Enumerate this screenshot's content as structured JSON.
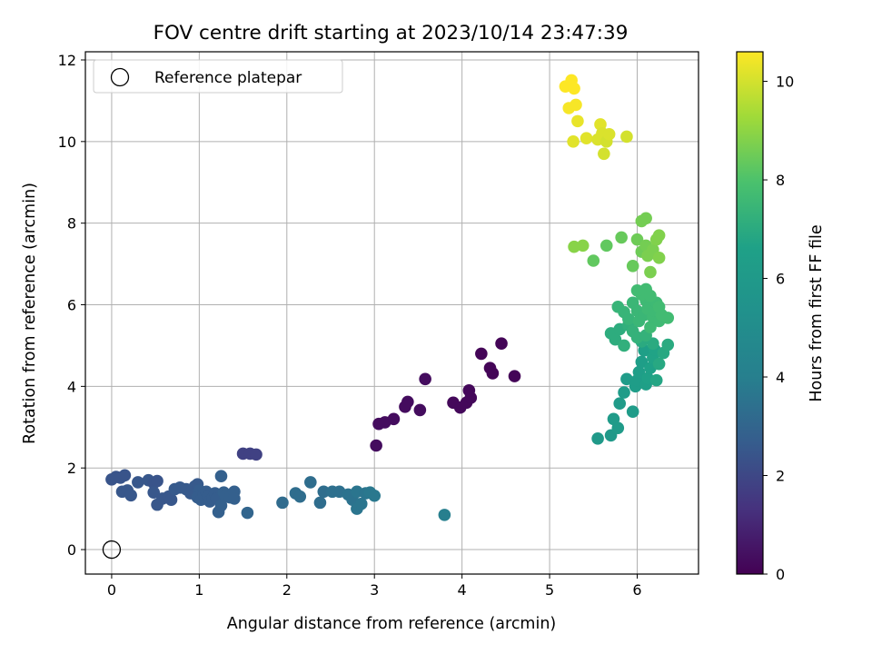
{
  "chart_data": {
    "type": "scatter",
    "title": "FOV centre drift starting at 2023/10/14 23:47:39",
    "xlabel": "Angular distance from reference (arcmin)",
    "ylabel": "Rotation from reference (arcmin)",
    "xlim": [
      -0.3,
      6.7
    ],
    "ylim": [
      -0.6,
      12.2
    ],
    "x_ticks": [
      0,
      1,
      2,
      3,
      4,
      5,
      6
    ],
    "y_ticks": [
      0,
      2,
      4,
      6,
      8,
      10,
      12
    ],
    "grid": true,
    "legend": {
      "placement": "top-left",
      "entries": [
        "Reference platepar"
      ]
    },
    "reference_point": {
      "x": 0,
      "y": 0
    },
    "colorbar": {
      "label": "Hours from first FF file",
      "range": [
        0,
        10.6
      ],
      "ticks": [
        0,
        2,
        4,
        6,
        8,
        10
      ],
      "colormap": "viridis"
    },
    "points": [
      [
        0.0,
        1.72,
        2.4
      ],
      [
        0.05,
        1.78,
        2.4
      ],
      [
        0.1,
        1.76,
        2.4
      ],
      [
        0.15,
        1.82,
        2.4
      ],
      [
        0.12,
        1.42,
        2.5
      ],
      [
        0.18,
        1.45,
        2.5
      ],
      [
        0.22,
        1.33,
        2.5
      ],
      [
        0.3,
        1.65,
        2.5
      ],
      [
        0.42,
        1.7,
        2.5
      ],
      [
        0.48,
        1.63,
        2.4
      ],
      [
        0.52,
        1.68,
        2.4
      ],
      [
        0.48,
        1.4,
        2.5
      ],
      [
        0.52,
        1.1,
        2.5
      ],
      [
        0.58,
        1.25,
        2.5
      ],
      [
        0.65,
        1.3,
        2.5
      ],
      [
        0.68,
        1.22,
        2.5
      ],
      [
        0.72,
        1.48,
        2.6
      ],
      [
        0.78,
        1.52,
        2.6
      ],
      [
        0.85,
        1.48,
        2.6
      ],
      [
        0.9,
        1.38,
        2.6
      ],
      [
        0.95,
        1.55,
        2.6
      ],
      [
        0.98,
        1.6,
        2.6
      ],
      [
        1.0,
        1.45,
        2.7
      ],
      [
        0.98,
        1.28,
        2.7
      ],
      [
        1.02,
        1.22,
        2.7
      ],
      [
        1.05,
        1.35,
        2.7
      ],
      [
        1.08,
        1.42,
        2.7
      ],
      [
        1.1,
        1.3,
        2.7
      ],
      [
        1.12,
        1.18,
        2.7
      ],
      [
        1.15,
        1.25,
        2.7
      ],
      [
        1.18,
        1.38,
        2.7
      ],
      [
        1.2,
        1.25,
        2.7
      ],
      [
        1.22,
        0.92,
        2.8
      ],
      [
        1.25,
        1.08,
        2.8
      ],
      [
        1.25,
        1.8,
        2.8
      ],
      [
        1.28,
        1.4,
        2.8
      ],
      [
        1.3,
        1.32,
        2.8
      ],
      [
        1.35,
        1.28,
        2.8
      ],
      [
        1.4,
        1.42,
        2.8
      ],
      [
        1.4,
        1.25,
        2.8
      ],
      [
        1.5,
        2.35,
        1.8
      ],
      [
        1.55,
        0.9,
        3.0
      ],
      [
        1.58,
        2.35,
        1.8
      ],
      [
        1.65,
        2.33,
        1.8
      ],
      [
        1.95,
        1.15,
        3.2
      ],
      [
        2.1,
        1.38,
        3.3
      ],
      [
        2.15,
        1.3,
        3.3
      ],
      [
        2.27,
        1.65,
        3.3
      ],
      [
        2.38,
        1.15,
        3.3
      ],
      [
        2.42,
        1.42,
        3.3
      ],
      [
        2.52,
        1.42,
        3.4
      ],
      [
        2.6,
        1.42,
        3.4
      ],
      [
        2.7,
        1.35,
        3.5
      ],
      [
        2.75,
        1.22,
        3.5
      ],
      [
        2.8,
        1.0,
        3.6
      ],
      [
        2.8,
        1.42,
        3.6
      ],
      [
        2.85,
        1.12,
        3.6
      ],
      [
        2.9,
        1.38,
        3.6
      ],
      [
        2.95,
        1.4,
        3.7
      ],
      [
        3.0,
        1.32,
        3.7
      ],
      [
        3.8,
        0.85,
        4.0
      ],
      [
        3.02,
        2.55,
        0.3
      ],
      [
        3.05,
        3.08,
        0.3
      ],
      [
        3.12,
        3.12,
        0.3
      ],
      [
        3.22,
        3.2,
        0.3
      ],
      [
        3.35,
        3.5,
        0.3
      ],
      [
        3.38,
        3.62,
        0.3
      ],
      [
        3.52,
        3.42,
        0.3
      ],
      [
        3.58,
        4.18,
        0.3
      ],
      [
        3.9,
        3.6,
        0.2
      ],
      [
        3.98,
        3.48,
        0.2
      ],
      [
        4.05,
        3.6,
        0.2
      ],
      [
        4.1,
        3.72,
        0.2
      ],
      [
        4.08,
        3.9,
        0.2
      ],
      [
        4.22,
        4.8,
        0.1
      ],
      [
        4.32,
        4.45,
        0.1
      ],
      [
        4.35,
        4.32,
        0.1
      ],
      [
        4.45,
        5.05,
        0.1
      ],
      [
        4.6,
        4.25,
        0.1
      ],
      [
        5.55,
        2.72,
        6.0
      ],
      [
        5.7,
        2.8,
        6.0
      ],
      [
        5.73,
        3.2,
        6.1
      ],
      [
        5.78,
        2.98,
        6.1
      ],
      [
        5.8,
        3.58,
        6.1
      ],
      [
        5.85,
        3.85,
        6.2
      ],
      [
        5.88,
        4.18,
        6.2
      ],
      [
        5.95,
        3.38,
        6.2
      ],
      [
        5.98,
        4.0,
        6.3
      ],
      [
        6.0,
        4.15,
        6.3
      ],
      [
        6.02,
        4.35,
        6.4
      ],
      [
        6.05,
        4.6,
        6.4
      ],
      [
        6.08,
        4.88,
        6.5
      ],
      [
        6.1,
        4.05,
        6.5
      ],
      [
        6.12,
        4.2,
        6.6
      ],
      [
        6.15,
        4.45,
        6.6
      ],
      [
        6.18,
        4.7,
        6.7
      ],
      [
        6.2,
        4.9,
        6.7
      ],
      [
        6.22,
        4.15,
        6.8
      ],
      [
        6.25,
        4.55,
        6.9
      ],
      [
        6.3,
        4.82,
        6.9
      ],
      [
        6.35,
        5.02,
        7.0
      ],
      [
        6.18,
        5.05,
        7.0
      ],
      [
        6.05,
        5.1,
        7.0
      ],
      [
        5.7,
        5.3,
        7.1
      ],
      [
        5.75,
        5.15,
        7.1
      ],
      [
        5.8,
        5.4,
        7.1
      ],
      [
        5.85,
        5.0,
        7.2
      ],
      [
        5.9,
        5.5,
        7.2
      ],
      [
        5.95,
        5.35,
        7.3
      ],
      [
        6.0,
        5.2,
        7.3
      ],
      [
        6.1,
        5.25,
        7.3
      ],
      [
        5.78,
        5.95,
        7.4
      ],
      [
        5.85,
        5.82,
        7.4
      ],
      [
        5.9,
        5.65,
        7.4
      ],
      [
        5.95,
        6.05,
        7.5
      ],
      [
        6.0,
        5.85,
        7.5
      ],
      [
        6.02,
        5.6,
        7.5
      ],
      [
        6.08,
        5.75,
        7.5
      ],
      [
        6.1,
        6.1,
        7.6
      ],
      [
        6.12,
        5.9,
        7.6
      ],
      [
        6.15,
        5.45,
        7.6
      ],
      [
        6.18,
        5.7,
        7.6
      ],
      [
        6.2,
        5.85,
        7.6
      ],
      [
        6.22,
        6.05,
        7.6
      ],
      [
        6.25,
        5.6,
        7.6
      ],
      [
        6.28,
        5.75,
        7.7
      ],
      [
        6.35,
        5.68,
        7.7
      ],
      [
        6.1,
        6.38,
        7.7
      ],
      [
        6.05,
        6.25,
        7.7
      ],
      [
        6.15,
        6.22,
        7.7
      ],
      [
        6.0,
        6.35,
        7.7
      ],
      [
        6.25,
        5.95,
        7.7
      ],
      [
        5.5,
        7.08,
        8.3
      ],
      [
        5.65,
        7.45,
        8.3
      ],
      [
        5.82,
        7.65,
        8.4
      ],
      [
        5.95,
        6.95,
        8.4
      ],
      [
        6.0,
        7.6,
        8.5
      ],
      [
        6.05,
        7.3,
        8.5
      ],
      [
        6.05,
        8.05,
        8.6
      ],
      [
        6.1,
        8.12,
        8.6
      ],
      [
        6.1,
        7.45,
        8.6
      ],
      [
        6.12,
        7.2,
        8.7
      ],
      [
        6.15,
        6.8,
        8.7
      ],
      [
        6.18,
        7.35,
        8.7
      ],
      [
        6.22,
        7.6,
        8.8
      ],
      [
        6.25,
        7.15,
        8.8
      ],
      [
        6.25,
        7.7,
        8.8
      ],
      [
        5.28,
        7.42,
        8.9
      ],
      [
        5.38,
        7.45,
        8.9
      ],
      [
        5.18,
        11.35,
        10.6
      ],
      [
        5.22,
        10.82,
        10.5
      ],
      [
        5.25,
        11.5,
        10.6
      ],
      [
        5.28,
        11.3,
        10.6
      ],
      [
        5.3,
        10.9,
        10.5
      ],
      [
        5.27,
        10.0,
        10.2
      ],
      [
        5.32,
        10.5,
        10.3
      ],
      [
        5.42,
        10.08,
        10.2
      ],
      [
        5.55,
        10.05,
        10.1
      ],
      [
        5.58,
        10.42,
        10.2
      ],
      [
        5.6,
        10.2,
        10.1
      ],
      [
        5.62,
        9.7,
        10.0
      ],
      [
        5.65,
        10.0,
        10.0
      ],
      [
        5.68,
        10.18,
        10.1
      ],
      [
        5.88,
        10.12,
        10.0
      ]
    ]
  }
}
